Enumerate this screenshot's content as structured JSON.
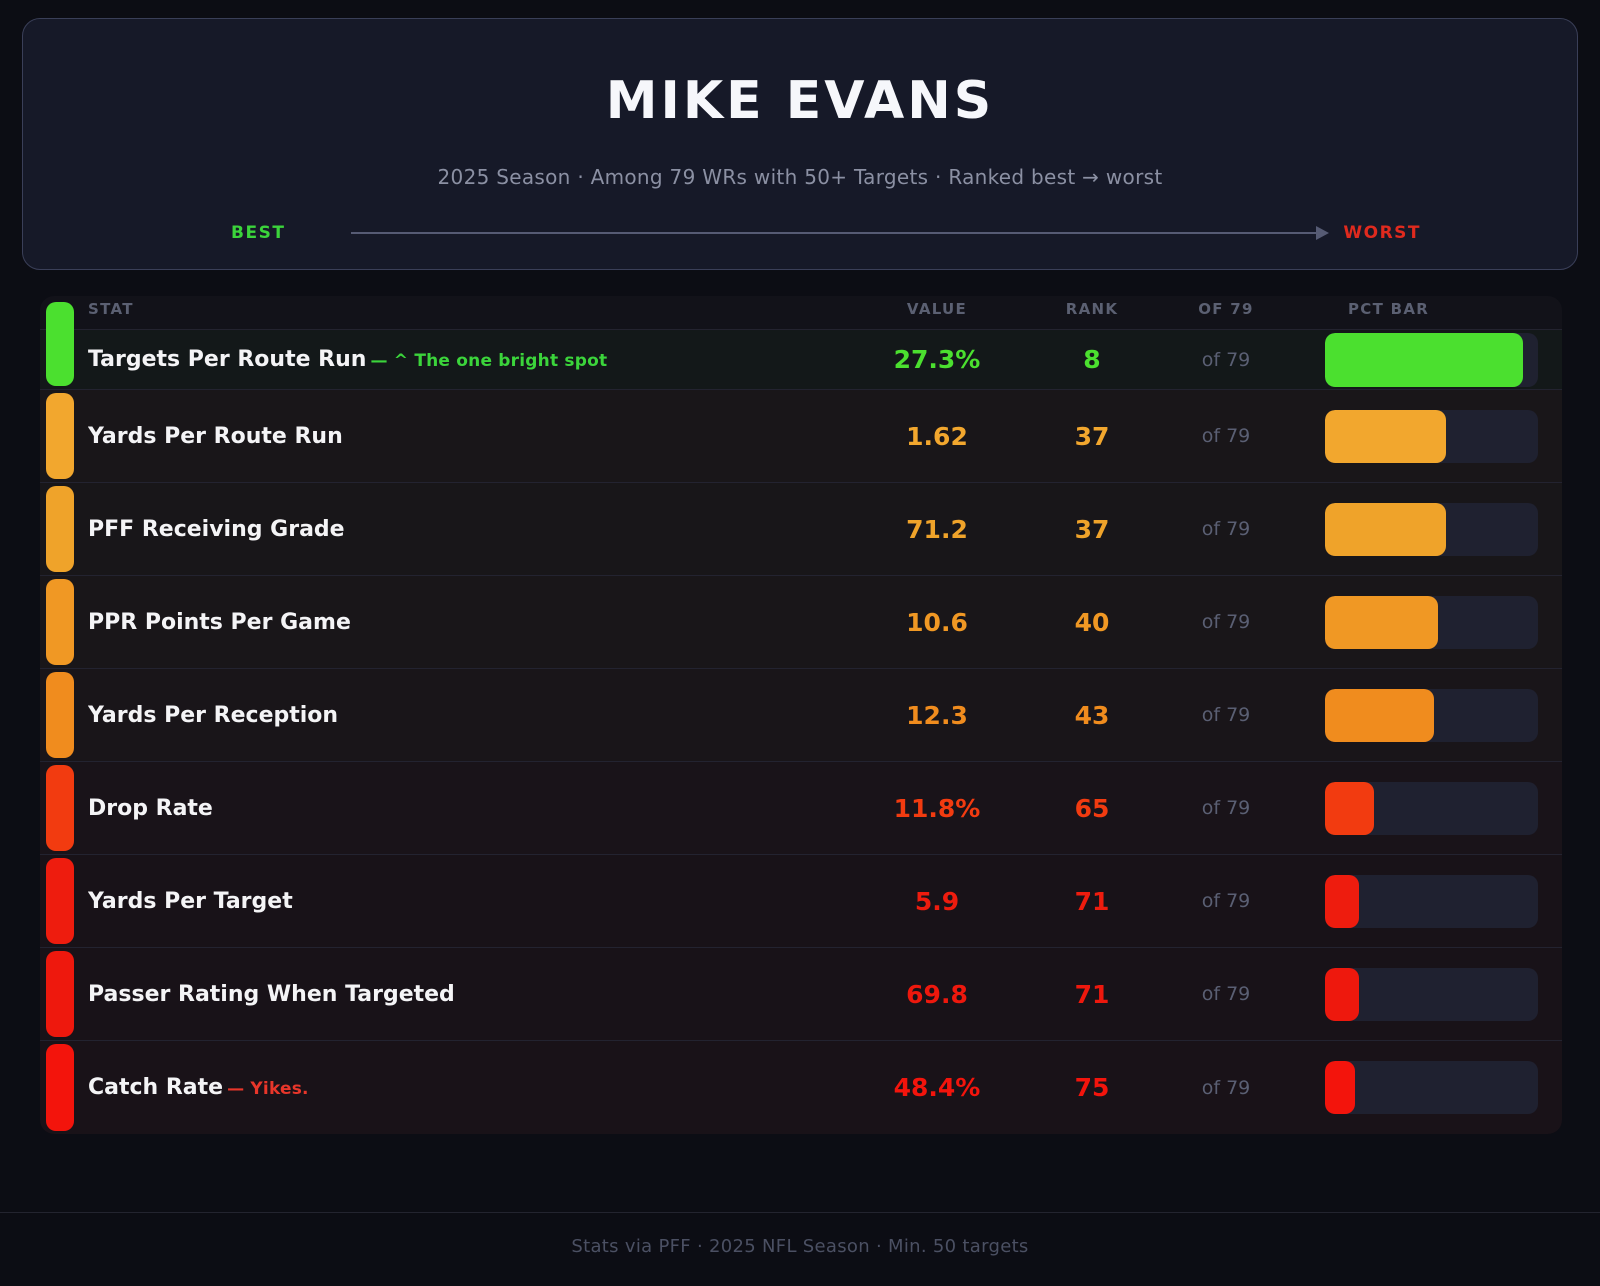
{
  "header": {
    "title": "MIKE EVANS",
    "subtitle": "2025 Season  ·  Among 79 WRs with 50+ Targets  ·  Ranked best → worst",
    "best_label": "BEST",
    "worst_label": "WORST",
    "best_color": "#3bd43b",
    "worst_color": "#e02a1e"
  },
  "table": {
    "columns": {
      "stat": "STAT",
      "value": "VALUE",
      "rank": "RANK",
      "of": "OF 79",
      "bar": "PCT BAR"
    },
    "rows": [
      {
        "stat": "Targets Per Route Run",
        "annotation": "— ^ The one bright spot",
        "annotation_color": "#3bd43b",
        "value": "27.3%",
        "rank": "8",
        "of": "of 79",
        "pct": 93,
        "color": "#4be02f"
      },
      {
        "stat": "Yards Per Route Run",
        "annotation": "",
        "annotation_color": "",
        "value": "1.62",
        "rank": "37",
        "of": "of 79",
        "pct": 57,
        "color": "#f2a72e"
      },
      {
        "stat": "PFF Receiving Grade",
        "annotation": "",
        "annotation_color": "",
        "value": "71.2",
        "rank": "37",
        "of": "of 79",
        "pct": 57,
        "color": "#efa32a"
      },
      {
        "stat": "PPR Points Per Game",
        "annotation": "",
        "annotation_color": "",
        "value": "10.6",
        "rank": "40",
        "of": "of 79",
        "pct": 53,
        "color": "#f09824"
      },
      {
        "stat": "Yards Per Reception",
        "annotation": "",
        "annotation_color": "",
        "value": "12.3",
        "rank": "43",
        "of": "of 79",
        "pct": 51,
        "color": "#f08c1e"
      },
      {
        "stat": "Drop Rate",
        "annotation": "",
        "annotation_color": "",
        "value": "11.8%",
        "rank": "65",
        "of": "of 79",
        "pct": 23,
        "color": "#f23b10"
      },
      {
        "stat": "Yards Per Target",
        "annotation": "",
        "annotation_color": "",
        "value": "5.9",
        "rank": "71",
        "of": "of 79",
        "pct": 16,
        "color": "#ee1c0e"
      },
      {
        "stat": "Passer Rating When Targeted",
        "annotation": "",
        "annotation_color": "",
        "value": "69.8",
        "rank": "71",
        "of": "of 79",
        "pct": 16,
        "color": "#ee180d"
      },
      {
        "stat": "Catch Rate",
        "annotation": "— Yikes.",
        "annotation_color": "#e8362a",
        "value": "48.4%",
        "rank": "75",
        "of": "of 79",
        "pct": 14,
        "color": "#f3140c"
      }
    ]
  },
  "footer": {
    "text": "Stats via PFF  ·  2025 NFL Season  ·  Min. 50 targets"
  },
  "chart_data": {
    "type": "bar",
    "title": "MIKE EVANS",
    "subtitle": "2025 Season · Among 79 WRs with 50+ Targets · Ranked best → worst",
    "categories": [
      "Targets Per Route Run",
      "Yards Per Route Run",
      "PFF Receiving Grade",
      "PPR Points Per Game",
      "Yards Per Reception",
      "Drop Rate",
      "Yards Per Target",
      "Passer Rating When Targeted",
      "Catch Rate"
    ],
    "values": [
      "27.3%",
      "1.62",
      "71.2",
      "10.6",
      "12.3",
      "11.8%",
      "5.9",
      "69.8",
      "48.4%"
    ],
    "ranks": [
      8,
      37,
      37,
      40,
      43,
      65,
      71,
      71,
      75
    ],
    "out_of": 79,
    "bar_fill_pct": [
      93,
      57,
      57,
      53,
      51,
      23,
      16,
      16,
      14
    ],
    "bar_colors": [
      "#4be02f",
      "#f2a72e",
      "#efa32a",
      "#f09824",
      "#f08c1e",
      "#f23b10",
      "#ee1c0e",
      "#ee180d",
      "#f3140c"
    ],
    "annotations": {
      "Targets Per Route Run": "^ The one bright spot",
      "Catch Rate": "Yikes."
    },
    "legend_position": "none",
    "grid": false
  }
}
